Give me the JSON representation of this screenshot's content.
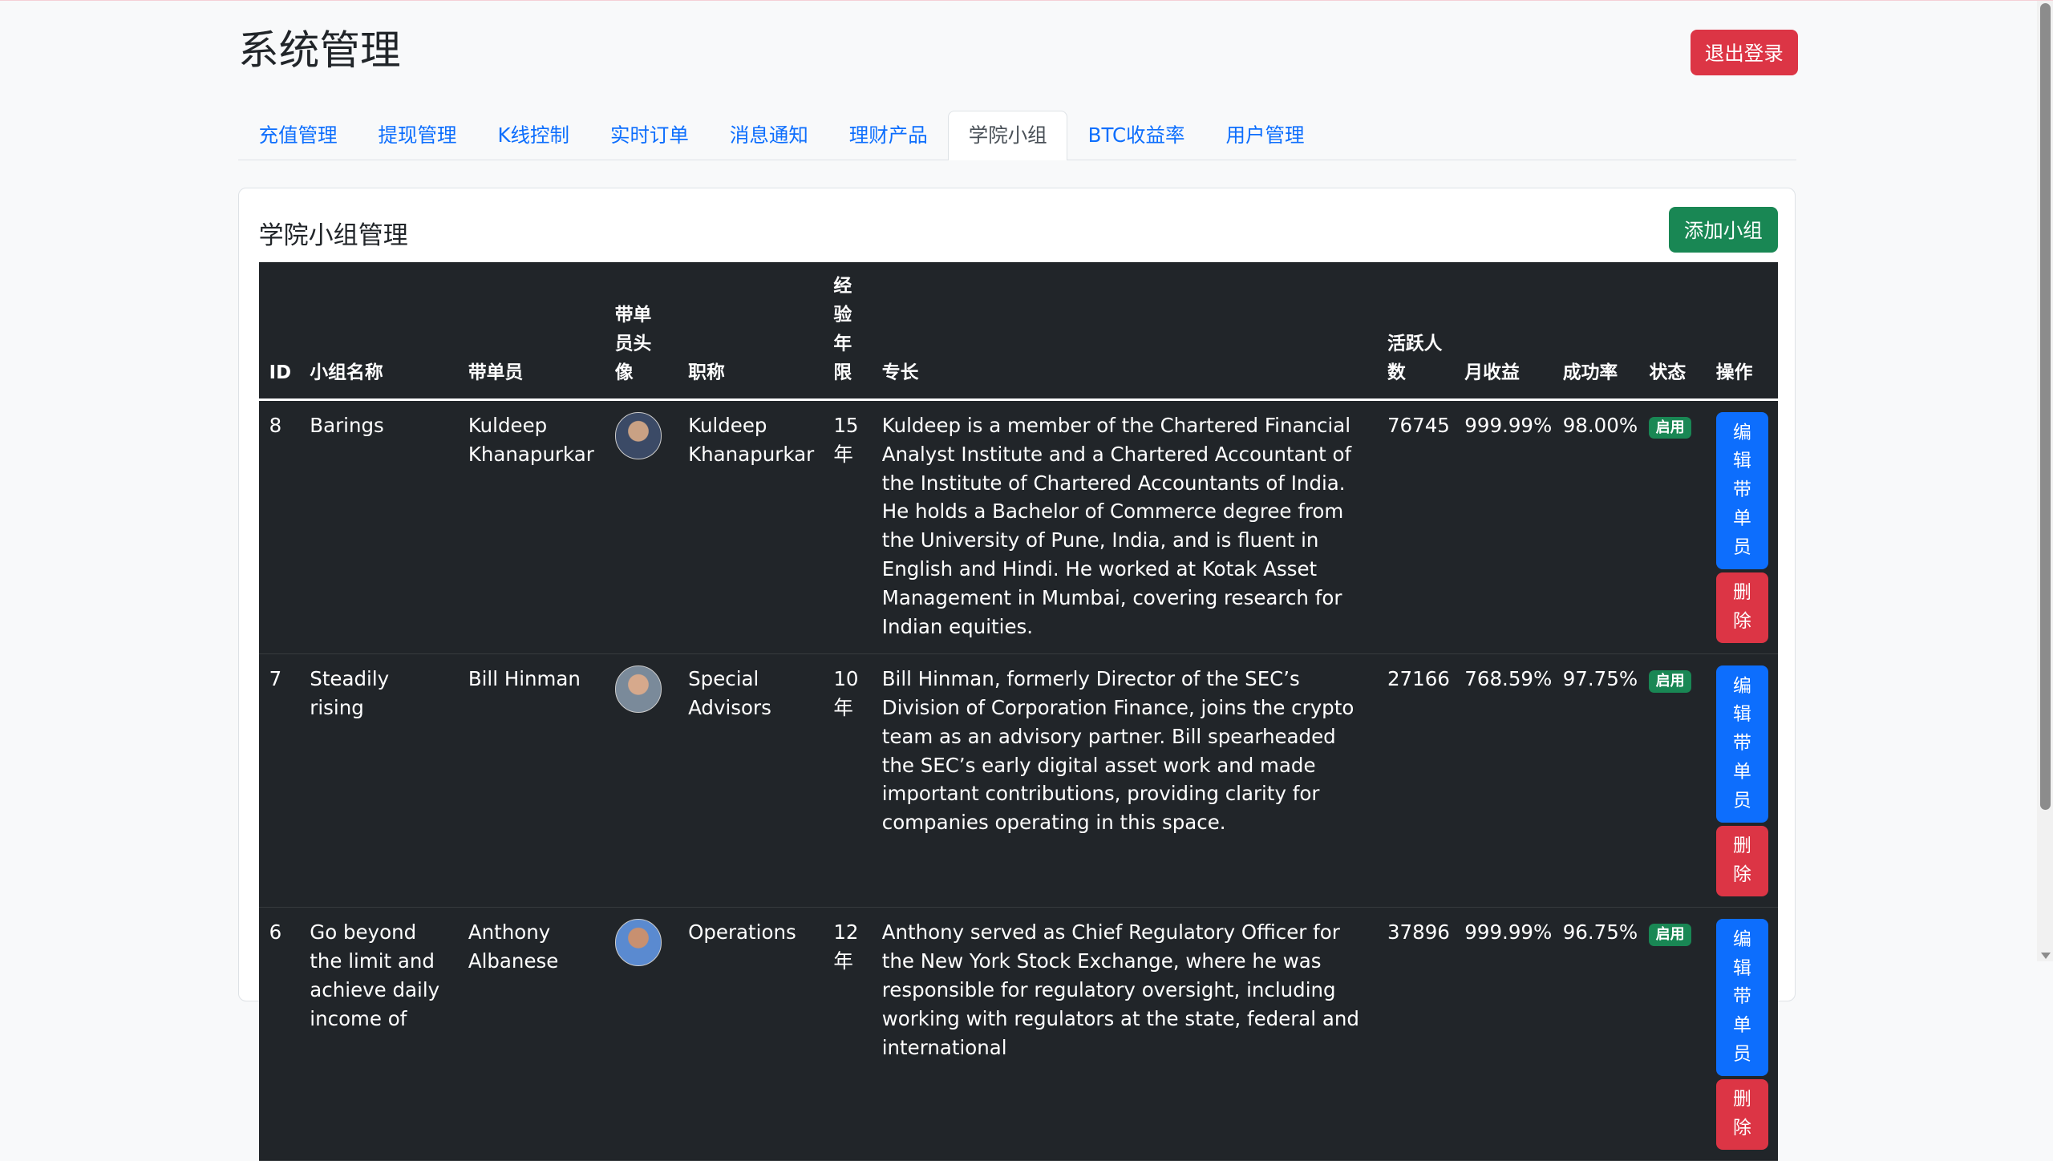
{
  "header": {
    "title": "系统管理",
    "logout_label": "退出登录"
  },
  "tabs": [
    {
      "label": "充值管理"
    },
    {
      "label": "提现管理"
    },
    {
      "label": "K线控制"
    },
    {
      "label": "实时订单"
    },
    {
      "label": "消息通知"
    },
    {
      "label": "理财产品"
    },
    {
      "label": "学院小组",
      "active": true
    },
    {
      "label": "BTC收益率"
    },
    {
      "label": "用户管理"
    }
  ],
  "panel": {
    "title": "学院小组管理",
    "add_label": "添加小组"
  },
  "table": {
    "headers": [
      "ID",
      "小组名称",
      "带单员",
      "带单员头像",
      "职称",
      "经验年限",
      "专长",
      "活跃人数",
      "月收益",
      "成功率",
      "状态",
      "操作"
    ],
    "rows": [
      {
        "id": "8",
        "name": "Barings",
        "leader": "Kuldeep Khanapurkar",
        "title": "Kuldeep Khanapurkar",
        "years": "15 年",
        "bio": "Kuldeep is a member of the Chartered Financial Analyst Institute and a Chartered Accountant of the Institute of Chartered Accountants of India. He holds a Bachelor of Commerce degree from the University of Pune, India, and is fluent in English and Hindi. He worked at Kotak Asset Management in Mumbai, covering research for Indian equities.",
        "active": "76745",
        "monthly": "999.99%",
        "success": "98.00%",
        "status": "启用",
        "edit": "编辑带单员",
        "delete": "删除"
      },
      {
        "id": "7",
        "name": "Steadily rising",
        "leader": "Bill Hinman",
        "title": "Special Advisors",
        "years": "10 年",
        "bio": "Bill Hinman, formerly Director of the SEC’s Division of Corporation Finance, joins the crypto team as an advisory partner. Bill spearheaded the SEC’s early digital asset work and made important contributions, providing clarity for companies operating in this space.",
        "active": "27166",
        "monthly": "768.59%",
        "success": "97.75%",
        "status": "启用",
        "edit": "编辑带单员",
        "delete": "删除"
      },
      {
        "id": "6",
        "name": "Go beyond the limit and achieve daily income of",
        "leader": "Anthony Albanese",
        "title": "Operations",
        "years": "12 年",
        "bio": "Anthony served as Chief Regulatory Officer for the New York Stock Exchange, where he was responsible for regulatory oversight, including working with regulators at the state, federal and international",
        "active": "37896",
        "monthly": "999.99%",
        "success": "96.75%",
        "status": "启用",
        "edit": "编辑带单员",
        "delete": "删除"
      }
    ]
  },
  "colors": {
    "primary": "#0d6efd",
    "danger": "#dc3545",
    "success": "#198754",
    "table_bg": "#212529"
  }
}
